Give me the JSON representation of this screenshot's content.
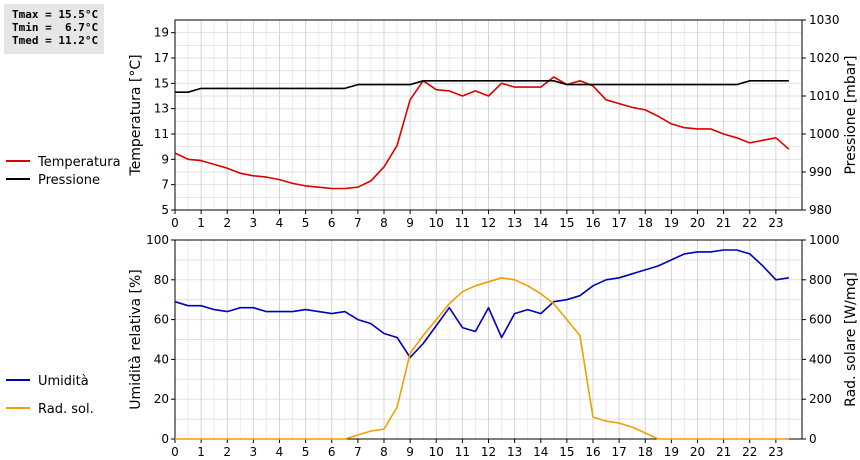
{
  "stats": {
    "tmax": "Tmax = 15.5°C",
    "tmin": "Tmin =  6.7°C",
    "tmed": "Tmed = 11.2°C"
  },
  "chart_data": [
    {
      "type": "line",
      "x": [
        0,
        0.5,
        1,
        1.5,
        2,
        2.5,
        3,
        3.5,
        4,
        4.5,
        5,
        5.5,
        6,
        6.5,
        7,
        7.5,
        8,
        8.5,
        9,
        9.5,
        10,
        10.5,
        11,
        11.5,
        12,
        12.5,
        13,
        13.5,
        14,
        14.5,
        15,
        15.5,
        16,
        16.5,
        17,
        17.5,
        18,
        18.5,
        19,
        19.5,
        20,
        20.5,
        21,
        21.5,
        22,
        22.5,
        23,
        23.5
      ],
      "xticks": [
        0,
        1,
        2,
        3,
        4,
        5,
        6,
        7,
        8,
        9,
        10,
        11,
        12,
        13,
        14,
        15,
        16,
        17,
        18,
        19,
        20,
        21,
        22,
        23
      ],
      "ylabel": "Temperatura [°C]",
      "ylim": [
        5,
        20
      ],
      "yticks": [
        5,
        7,
        9,
        11,
        13,
        15,
        17,
        19
      ],
      "y2label": "Pressione [mbar]",
      "y2lim": [
        980,
        1030
      ],
      "y2ticks": [
        980,
        990,
        1000,
        1010,
        1020,
        1030
      ],
      "grid": true,
      "legend_position": "left",
      "series": [
        {
          "name": "Temperatura",
          "axis": "left",
          "color": "#dd0000",
          "values": [
            9.5,
            9.0,
            8.9,
            8.6,
            8.3,
            7.9,
            7.7,
            7.6,
            7.4,
            7.1,
            6.9,
            6.8,
            6.7,
            6.7,
            6.8,
            7.3,
            8.4,
            10.1,
            13.7,
            15.2,
            14.5,
            14.4,
            14.0,
            14.4,
            14.0,
            15.0,
            14.7,
            14.7,
            14.7,
            15.5,
            14.9,
            15.2,
            14.8,
            13.7,
            13.4,
            13.1,
            12.9,
            12.4,
            11.8,
            11.5,
            11.4,
            11.4,
            11.0,
            10.7,
            10.3,
            10.5,
            10.7,
            9.8
          ]
        },
        {
          "name": "Pressione",
          "axis": "right",
          "color": "#000000",
          "values": [
            1011,
            1011,
            1012,
            1012,
            1012,
            1012,
            1012,
            1012,
            1012,
            1012,
            1012,
            1012,
            1012,
            1012,
            1013,
            1013,
            1013,
            1013,
            1013,
            1014,
            1014,
            1014,
            1014,
            1014,
            1014,
            1014,
            1014,
            1014,
            1014,
            1014,
            1013,
            1013,
            1013,
            1013,
            1013,
            1013,
            1013,
            1013,
            1013,
            1013,
            1013,
            1013,
            1013,
            1013,
            1014,
            1014,
            1014,
            1014
          ]
        }
      ]
    },
    {
      "type": "line",
      "x": [
        0,
        0.5,
        1,
        1.5,
        2,
        2.5,
        3,
        3.5,
        4,
        4.5,
        5,
        5.5,
        6,
        6.5,
        7,
        7.5,
        8,
        8.5,
        9,
        9.5,
        10,
        10.5,
        11,
        11.5,
        12,
        12.5,
        13,
        13.5,
        14,
        14.5,
        15,
        15.5,
        16,
        16.5,
        17,
        17.5,
        18,
        18.5,
        19,
        19.5,
        20,
        20.5,
        21,
        21.5,
        22,
        22.5,
        23,
        23.5
      ],
      "xticks": [
        0,
        1,
        2,
        3,
        4,
        5,
        6,
        7,
        8,
        9,
        10,
        11,
        12,
        13,
        14,
        15,
        16,
        17,
        18,
        19,
        20,
        21,
        22,
        23
      ],
      "ylabel": "Umidità relativa [%]",
      "ylim": [
        0,
        100
      ],
      "yticks": [
        0,
        20,
        40,
        60,
        80,
        100
      ],
      "y2label": "Rad. solare [W/mq]",
      "y2lim": [
        0,
        1000
      ],
      "y2ticks": [
        0,
        200,
        400,
        600,
        800,
        1000
      ],
      "grid": true,
      "legend_position": "left",
      "series": [
        {
          "name": "Umidità",
          "axis": "left",
          "color": "#0000bb",
          "values": [
            69,
            67,
            67,
            65,
            64,
            66,
            66,
            64,
            64,
            64,
            65,
            64,
            63,
            64,
            60,
            58,
            53,
            51,
            41,
            48,
            57,
            66,
            56,
            54,
            66,
            51,
            63,
            65,
            63,
            69,
            70,
            72,
            77,
            80,
            81,
            83,
            85,
            87,
            90,
            93,
            94,
            94,
            95,
            95,
            93,
            87,
            80,
            81
          ]
        },
        {
          "name": "Rad. sol.",
          "axis": "right",
          "color": "#f0a000",
          "values": [
            0,
            0,
            0,
            0,
            0,
            0,
            0,
            0,
            0,
            0,
            0,
            0,
            0,
            0,
            20,
            40,
            50,
            160,
            430,
            520,
            600,
            680,
            740,
            770,
            790,
            810,
            800,
            770,
            730,
            680,
            600,
            520,
            110,
            90,
            80,
            60,
            30,
            0,
            0,
            0,
            0,
            0,
            0,
            0,
            0,
            0,
            0,
            0
          ]
        }
      ]
    }
  ]
}
